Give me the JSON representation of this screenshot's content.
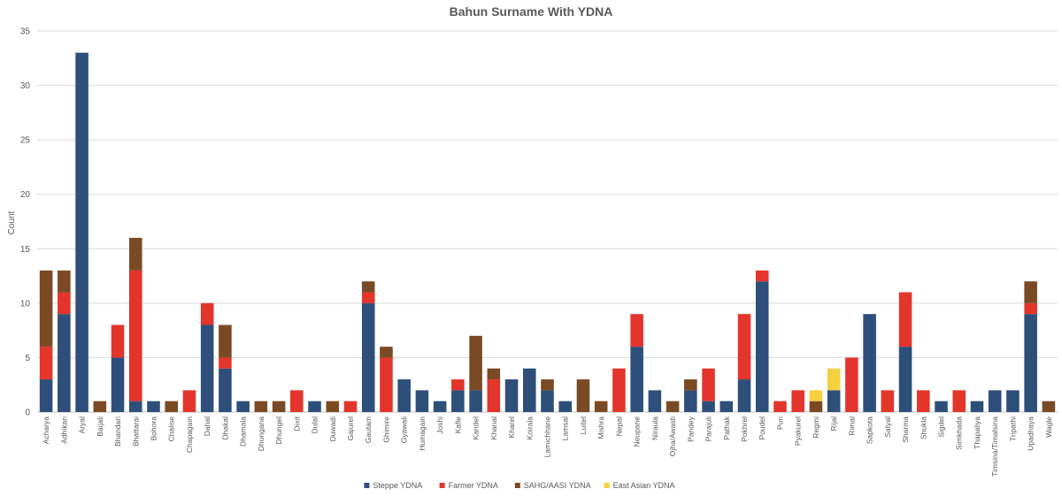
{
  "chart_data": {
    "type": "bar",
    "stacked": true,
    "title": "Bahun Surname With YDNA",
    "ylabel": "Count",
    "xlabel": "",
    "ylim": [
      0,
      35
    ],
    "yticks": [
      0,
      5,
      10,
      15,
      20,
      25,
      30,
      35
    ],
    "grid": true,
    "legend_position": "bottom",
    "categories": [
      "Acharya",
      "Adhikari",
      "Aryal",
      "Baijali",
      "Bhandari",
      "Bhattarai",
      "Bohora",
      "Chalise",
      "Chapagain",
      "Dahal",
      "Dhakal",
      "Dhamala",
      "Dhungana",
      "Dhungel",
      "Dixit",
      "Dulal",
      "Duwadi",
      "Gajurel",
      "Gautam",
      "Ghimire",
      "Gyawali",
      "Humagain",
      "Joshi",
      "Kafle",
      "Kandel",
      "Khanal",
      "Kharel",
      "Koirala",
      "Lamichhane",
      "Lamsal",
      "Luitel",
      "Mishra",
      "Nepal",
      "Neupane",
      "Niraula",
      "Ojha/Awasti",
      "Pandey",
      "Parajuli",
      "Pathak",
      "Pokhrel",
      "Poudel",
      "Puri",
      "Pyakurel",
      "Regmi",
      "Rijal",
      "Rimal",
      "Sapkota",
      "Satyal",
      "Sharma",
      "Shukla",
      "Sigdel",
      "Simkhada",
      "Thapaliya",
      "Timsina/Timalsina",
      "Tripathi",
      "Upadhaya",
      "Wagle"
    ],
    "series": [
      {
        "name": "Steppe YDNA",
        "color": "#2e4f7a",
        "values": [
          3,
          9,
          33,
          0,
          5,
          1,
          1,
          0,
          0,
          8,
          4,
          1,
          0,
          0,
          0,
          1,
          0,
          0,
          10,
          0,
          3,
          2,
          1,
          2,
          2,
          0,
          3,
          4,
          2,
          1,
          0,
          0,
          0,
          6,
          2,
          0,
          2,
          1,
          1,
          3,
          12,
          0,
          0,
          0,
          2,
          0,
          9,
          0,
          6,
          0,
          1,
          0,
          1,
          2,
          2,
          9,
          0
        ]
      },
      {
        "name": "Farmer YDNA",
        "color": "#e3352c",
        "values": [
          3,
          2,
          0,
          0,
          3,
          12,
          0,
          0,
          2,
          2,
          1,
          0,
          0,
          0,
          2,
          0,
          0,
          1,
          1,
          5,
          0,
          0,
          0,
          1,
          0,
          3,
          0,
          0,
          0,
          0,
          0,
          0,
          4,
          3,
          0,
          0,
          0,
          3,
          0,
          6,
          1,
          1,
          2,
          0,
          0,
          5,
          0,
          2,
          5,
          2,
          0,
          2,
          0,
          0,
          0,
          1,
          0
        ]
      },
      {
        "name": "SAHG/AASI YDNA",
        "color": "#7a4a24",
        "values": [
          7,
          2,
          0,
          1,
          0,
          3,
          0,
          1,
          0,
          0,
          3,
          0,
          1,
          1,
          0,
          0,
          1,
          0,
          1,
          1,
          0,
          0,
          0,
          0,
          5,
          1,
          0,
          0,
          1,
          0,
          3,
          1,
          0,
          0,
          0,
          1,
          1,
          0,
          0,
          0,
          0,
          0,
          0,
          1,
          0,
          0,
          0,
          0,
          0,
          0,
          0,
          0,
          0,
          0,
          0,
          2,
          1
        ]
      },
      {
        "name": "East Asian YDNA",
        "color": "#f4d03f",
        "values": [
          0,
          0,
          0,
          0,
          0,
          0,
          0,
          0,
          0,
          0,
          0,
          0,
          0,
          0,
          0,
          0,
          0,
          0,
          0,
          0,
          0,
          0,
          0,
          0,
          0,
          0,
          0,
          0,
          0,
          0,
          0,
          0,
          0,
          0,
          0,
          0,
          0,
          0,
          0,
          0,
          0,
          0,
          0,
          1,
          2,
          0,
          0,
          0,
          0,
          0,
          0,
          0,
          0,
          0,
          0,
          0,
          0
        ]
      }
    ]
  }
}
